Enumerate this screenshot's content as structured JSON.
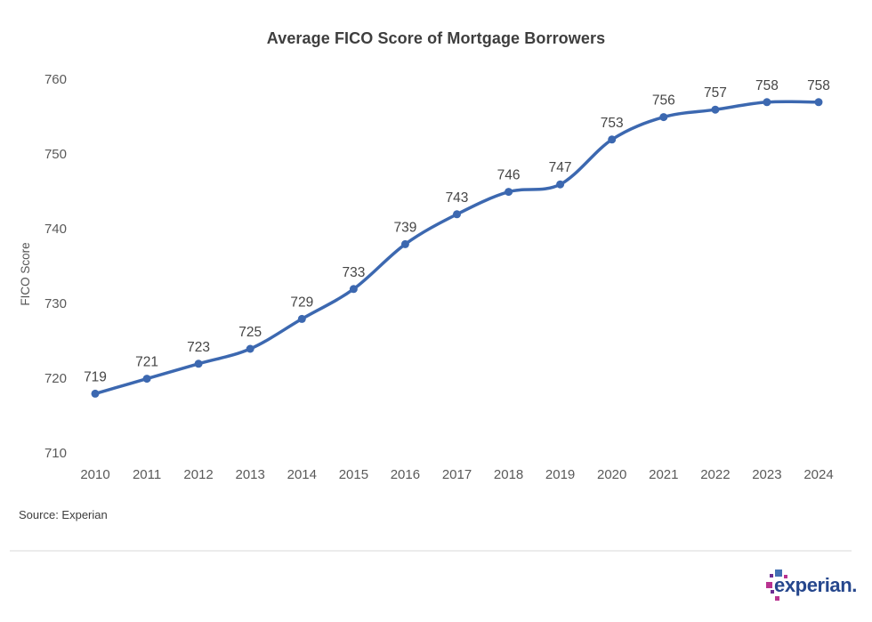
{
  "chart_data": {
    "type": "line",
    "title": "Average FICO Score of Mortgage Borrowers",
    "xlabel": "",
    "ylabel": "FICO Score",
    "categories": [
      "2010",
      "2011",
      "2012",
      "2013",
      "2014",
      "2015",
      "2016",
      "2017",
      "2018",
      "2019",
      "2020",
      "2021",
      "2022",
      "2023",
      "2024"
    ],
    "values": [
      719,
      721,
      723,
      725,
      729,
      733,
      739,
      743,
      746,
      747,
      753,
      756,
      757,
      758,
      758
    ],
    "ylim": [
      710,
      760
    ],
    "yticks": [
      710,
      720,
      730,
      740,
      750,
      760
    ],
    "grid": false,
    "legend": false,
    "smoothed": true,
    "data_labels": true,
    "colors": {
      "line": "#3C68B0",
      "point": "#3C68B0",
      "data_label": "#454545",
      "tick_label": "#595959",
      "axis_label": "#555555",
      "title": "#3E3E3E"
    }
  },
  "source_note": "Source: Experian",
  "footer": {
    "logo_text": "experian.",
    "logo_colors": {
      "text": "#26478D",
      "blue": "#4370B4",
      "magenta": "#B93390",
      "purple": "#6D2E93"
    }
  }
}
